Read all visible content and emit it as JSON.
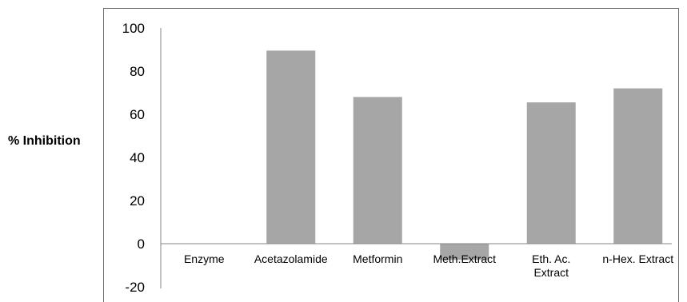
{
  "chart_data": {
    "type": "bar",
    "title": "",
    "xlabel": "",
    "ylabel": "% Inhibition",
    "categories": [
      "Enzyme",
      "Acetazolamide",
      "Metformin",
      "Meth.Extract",
      "Eth. Ac. Extract",
      "n-Hex. Extract"
    ],
    "category_lines": [
      [
        "Enzyme"
      ],
      [
        "Acetazolamide"
      ],
      [
        "Metformin"
      ],
      [
        "Meth.Extract"
      ],
      [
        "Eth. Ac.",
        "Extract"
      ],
      [
        "n-Hex. Extract"
      ]
    ],
    "values": [
      0,
      89.5,
      68,
      -7.5,
      65.5,
      72
    ],
    "ylim": [
      -20,
      100
    ],
    "yticks": [
      100,
      80,
      60,
      40,
      20,
      0,
      -20
    ],
    "grid": false,
    "legend": "none",
    "bar_color": "#a6a6a6",
    "axis_color": "#868686"
  }
}
